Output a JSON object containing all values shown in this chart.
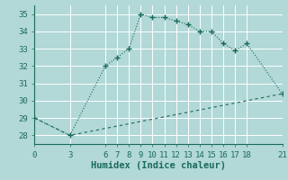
{
  "xlabel": "Humidex (Indice chaleur)",
  "background_color": "#b2d8d8",
  "grid_color": "#c8e8e8",
  "line_color": "#1a6b5a",
  "xlim": [
    0,
    21
  ],
  "ylim": [
    27.5,
    35.5
  ],
  "yticks": [
    28,
    29,
    30,
    31,
    32,
    33,
    34,
    35
  ],
  "xticks": [
    0,
    3,
    6,
    7,
    8,
    9,
    10,
    11,
    12,
    13,
    14,
    15,
    16,
    17,
    18,
    21
  ],
  "line1_x": [
    0,
    3,
    6,
    7,
    8,
    9,
    10,
    11,
    12,
    13,
    14,
    15,
    16,
    17,
    18,
    21
  ],
  "line1_y": [
    29,
    28,
    32,
    32.5,
    33,
    35,
    34.8,
    34.8,
    34.6,
    34.4,
    34.0,
    34.0,
    33.3,
    32.9,
    33.3,
    30.4
  ],
  "line2_x": [
    0,
    3,
    21
  ],
  "line2_y": [
    29,
    28,
    30.4
  ],
  "font_family": "monospace",
  "tick_fontsize": 6.5,
  "label_fontsize": 7.5
}
